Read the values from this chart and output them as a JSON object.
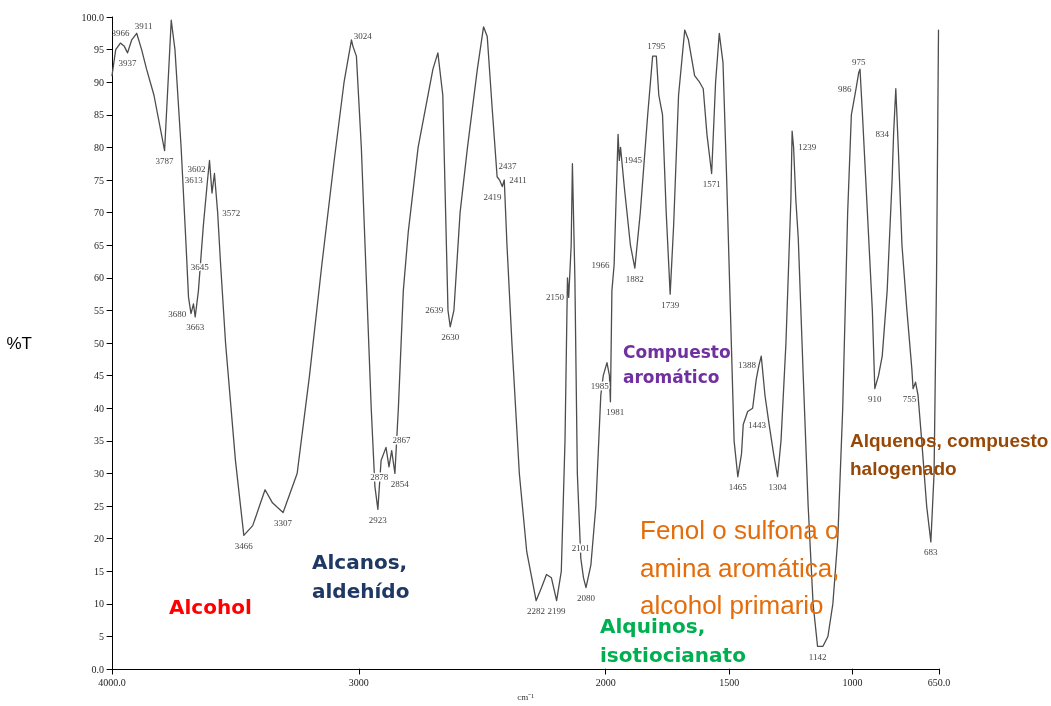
{
  "chart_data": {
    "type": "line",
    "ylabel": "%T",
    "xlabel": "cm⁻¹",
    "xlim": [
      4000,
      650
    ],
    "xticks": [
      {
        "value": 4000,
        "label": "4000.0"
      },
      3000,
      2000,
      1500,
      1000,
      {
        "value": 650,
        "label": "650.0"
      }
    ],
    "ylim": [
      0,
      100
    ],
    "yticks": [
      {
        "value": 0,
        "label": "0.0"
      },
      5,
      10,
      15,
      20,
      25,
      30,
      35,
      40,
      45,
      50,
      55,
      60,
      65,
      70,
      75,
      80,
      85,
      90,
      95,
      {
        "value": 100,
        "label": "100.0"
      }
    ],
    "grid": false,
    "marker": "none",
    "line_style": "solid",
    "x": [
      4000,
      3985,
      3966,
      3950,
      3937,
      3920,
      3900,
      3880,
      3860,
      3830,
      3787,
      3760,
      3745,
      3720,
      3700,
      3690,
      3680,
      3670,
      3663,
      3650,
      3630,
      3613,
      3605,
      3595,
      3585,
      3572,
      3560,
      3540,
      3500,
      3466,
      3430,
      3380,
      3350,
      3307,
      3250,
      3200,
      3150,
      3100,
      3060,
      3030,
      3024,
      3010,
      2990,
      2970,
      2950,
      2935,
      2923,
      2910,
      2890,
      2878,
      2867,
      2854,
      2840,
      2820,
      2800,
      2760,
      2700,
      2680,
      2660,
      2639,
      2630,
      2615,
      2590,
      2560,
      2520,
      2495,
      2480,
      2460,
      2440,
      2430,
      2419,
      2411,
      2400,
      2380,
      2350,
      2320,
      2282,
      2260,
      2240,
      2220,
      2199,
      2180,
      2165,
      2155,
      2150,
      2140,
      2135,
      2125,
      2115,
      2101,
      2090,
      2080,
      2060,
      2040,
      2020,
      2010,
      1995,
      1985,
      1981,
      1975,
      1966,
      1958,
      1950,
      1945,
      1940,
      1925,
      1900,
      1882,
      1860,
      1830,
      1810,
      1795,
      1785,
      1770,
      1755,
      1739,
      1725,
      1705,
      1680,
      1665,
      1640,
      1620,
      1605,
      1590,
      1571,
      1555,
      1540,
      1525,
      1510,
      1495,
      1480,
      1465,
      1450,
      1443,
      1425,
      1405,
      1390,
      1380,
      1370,
      1355,
      1340,
      1320,
      1304,
      1290,
      1270,
      1250,
      1245,
      1239,
      1230,
      1220,
      1200,
      1180,
      1160,
      1142,
      1120,
      1100,
      1080,
      1060,
      1040,
      1020,
      1005,
      986,
      975,
      970,
      960,
      940,
      920,
      910,
      895,
      880,
      860,
      840,
      834,
      825,
      815,
      800,
      780,
      760,
      755,
      745,
      735,
      720,
      700,
      683,
      670,
      660,
      652
    ],
    "series": [
      {
        "color": "#4d4d4d",
        "values": [
          91,
          95,
          96,
          95.5,
          94.5,
          96.5,
          97.5,
          95,
          92,
          88,
          79.5,
          99.5,
          95,
          80,
          65,
          57,
          54.5,
          56,
          54,
          58,
          68,
          75,
          78,
          73,
          76,
          70,
          62,
          50,
          32,
          20.5,
          22,
          27.5,
          25.5,
          24,
          30,
          45,
          62,
          78,
          90,
          96.5,
          95.5,
          94,
          80,
          60,
          40,
          28,
          24.5,
          32,
          34,
          31,
          33.5,
          30,
          40,
          58,
          67,
          80,
          92,
          94.5,
          88,
          55,
          52.5,
          55,
          70,
          80,
          92,
          98.5,
          97,
          86,
          75.5,
          75,
          74,
          75,
          65,
          50,
          30,
          18,
          10.5,
          12.5,
          14.5,
          14,
          10.5,
          15,
          35,
          60,
          57,
          65,
          77.5,
          60,
          30,
          17,
          14,
          12.5,
          16,
          25,
          42,
          45,
          47,
          45,
          41,
          58,
          62,
          72,
          82,
          78,
          80,
          74,
          65,
          61.5,
          70,
          85,
          94,
          94,
          88,
          85,
          70,
          57.5,
          68,
          88,
          98,
          96.5,
          91,
          90,
          89,
          82,
          76,
          90,
          97.5,
          93,
          75,
          55,
          35,
          29.5,
          33,
          37.5,
          39.5,
          40,
          44.5,
          46.5,
          48,
          42,
          38,
          33,
          29.5,
          35,
          50,
          72,
          82.5,
          80,
          72,
          66,
          45,
          25,
          10,
          3.5,
          3.5,
          5,
          10,
          20,
          40,
          70,
          85,
          89,
          91.5,
          92,
          85,
          70,
          55,
          43,
          45,
          48,
          58,
          75,
          82,
          89,
          80,
          65,
          55,
          46,
          43,
          44,
          42,
          35,
          25,
          19.5,
          30,
          60,
          98
        ]
      }
    ],
    "annotations": [
      {
        "text": "3966",
        "x": 3966,
        "y": 96
      },
      {
        "text": "3937",
        "x": 3937,
        "y": 94.5
      },
      {
        "text": "3911",
        "x": 3911,
        "y": 97
      },
      {
        "text": "3787",
        "x": 3787,
        "y": 79.5
      },
      {
        "text": "3613",
        "x": 3613,
        "y": 75
      },
      {
        "text": "3602",
        "x": 3602,
        "y": 76
      },
      {
        "text": "3572",
        "x": 3572,
        "y": 70
      },
      {
        "text": "3645",
        "x": 3645,
        "y": 60
      },
      {
        "text": "3663",
        "x": 3663,
        "y": 54
      },
      {
        "text": "3680",
        "x": 3680,
        "y": 54.5
      },
      {
        "text": "3466",
        "x": 3466,
        "y": 20.5
      },
      {
        "text": "3307",
        "x": 3307,
        "y": 24
      },
      {
        "text": "3024",
        "x": 3024,
        "y": 95.5
      },
      {
        "text": "2878",
        "x": 2878,
        "y": 31
      },
      {
        "text": "2867",
        "x": 2867,
        "y": 33.5
      },
      {
        "text": "2854",
        "x": 2854,
        "y": 30
      },
      {
        "text": "2923",
        "x": 2923,
        "y": 24.5
      },
      {
        "text": "2639",
        "x": 2639,
        "y": 55
      },
      {
        "text": "2630",
        "x": 2630,
        "y": 52.5
      },
      {
        "text": "2437",
        "x": 2437,
        "y": 75.5
      },
      {
        "text": "2419",
        "x": 2419,
        "y": 74
      },
      {
        "text": "2411",
        "x": 2411,
        "y": 75
      },
      {
        "text": "2282",
        "x": 2282,
        "y": 10.5
      },
      {
        "text": "2199",
        "x": 2199,
        "y": 10.5
      },
      {
        "text": "2150",
        "x": 2150,
        "y": 57
      },
      {
        "text": "2101",
        "x": 2101,
        "y": 17
      },
      {
        "text": "2080",
        "x": 2080,
        "y": 12.5
      },
      {
        "text": "1985",
        "x": 1985,
        "y": 45
      },
      {
        "text": "1981",
        "x": 1981,
        "y": 41
      },
      {
        "text": "1966",
        "x": 1966,
        "y": 62
      },
      {
        "text": "1945",
        "x": 1945,
        "y": 78
      },
      {
        "text": "1882",
        "x": 1882,
        "y": 61.5
      },
      {
        "text": "1795",
        "x": 1795,
        "y": 94
      },
      {
        "text": "1739",
        "x": 1739,
        "y": 57.5
      },
      {
        "text": "1571",
        "x": 1571,
        "y": 76
      },
      {
        "text": "1465",
        "x": 1465,
        "y": 29.5
      },
      {
        "text": "1443",
        "x": 1443,
        "y": 37.5
      },
      {
        "text": "1388",
        "x": 1388,
        "y": 45
      },
      {
        "text": "1304",
        "x": 1304,
        "y": 29.5
      },
      {
        "text": "1239",
        "x": 1239,
        "y": 80
      },
      {
        "text": "1142",
        "x": 1142,
        "y": 3.5
      },
      {
        "text": "975",
        "x": 975,
        "y": 91.5
      },
      {
        "text": "986",
        "x": 986,
        "y": 89
      },
      {
        "text": "834",
        "x": 834,
        "y": 82
      },
      {
        "text": "910",
        "x": 910,
        "y": 43
      },
      {
        "text": "755",
        "x": 755,
        "y": 43
      },
      {
        "text": "683",
        "x": 683,
        "y": 19.5
      },
      "Alcohol",
      "Alcanos, aldehído",
      "Alquinos, isotiocianato",
      "Compuesto aromático",
      "Fenol o sulfona o amina aromática, alcohol primario",
      "Alquenos, compuesto halogenado"
    ]
  }
}
